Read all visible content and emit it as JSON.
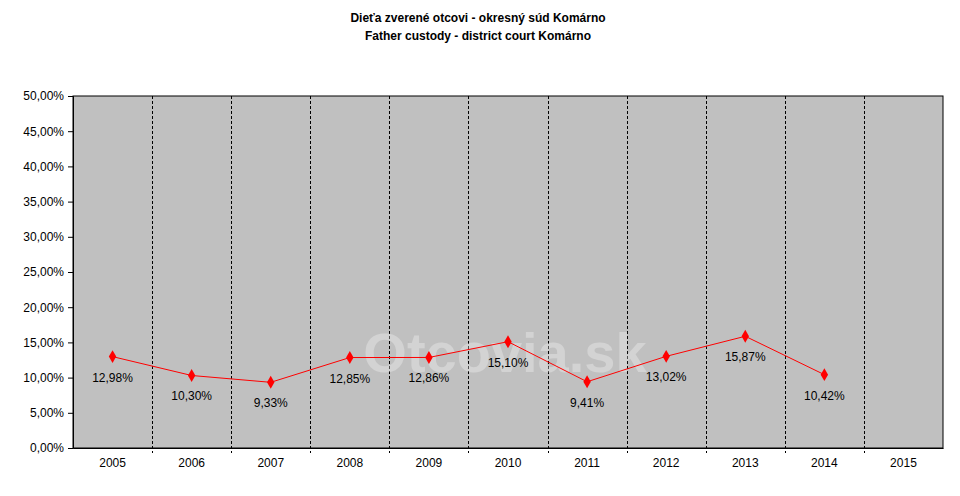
{
  "chart_data": {
    "type": "line",
    "title": "Dieťa zverené otcovi - okresný súd Komárno",
    "subtitle": "Father custody - district court Komárno",
    "annotations": [
      "Otcovia.sk"
    ],
    "categories": [
      "2005",
      "2006",
      "2007",
      "2008",
      "2009",
      "2010",
      "2011",
      "2012",
      "2013",
      "2014",
      "2015"
    ],
    "values": [
      12.98,
      10.3,
      9.33,
      12.85,
      12.86,
      15.1,
      9.41,
      13.02,
      15.87,
      10.42,
      null
    ],
    "value_labels": [
      "12,98%",
      "10,30%",
      "9,33%",
      "12,85%",
      "12,86%",
      "15,10%",
      "9,41%",
      "13,02%",
      "15,87%",
      "10,42%",
      null
    ],
    "color": "#ff0000",
    "marker": "diamond",
    "line_style": "solid",
    "data_labels": true,
    "grid": "x",
    "ylim": [
      0,
      50
    ],
    "yticks": [
      {
        "value": 0,
        "label": "0,00%"
      },
      {
        "value": 5,
        "label": "5,00%"
      },
      {
        "value": 10,
        "label": "10,00%"
      },
      {
        "value": 15,
        "label": "15,00%"
      },
      {
        "value": 20,
        "label": "20,00%"
      },
      {
        "value": 25,
        "label": "25,00%"
      },
      {
        "value": 30,
        "label": "30,00%"
      },
      {
        "value": 35,
        "label": "35,00%"
      },
      {
        "value": 40,
        "label": "40,00%"
      },
      {
        "value": 45,
        "label": "45,00%"
      },
      {
        "value": 50,
        "label": "50,00%"
      }
    ]
  }
}
